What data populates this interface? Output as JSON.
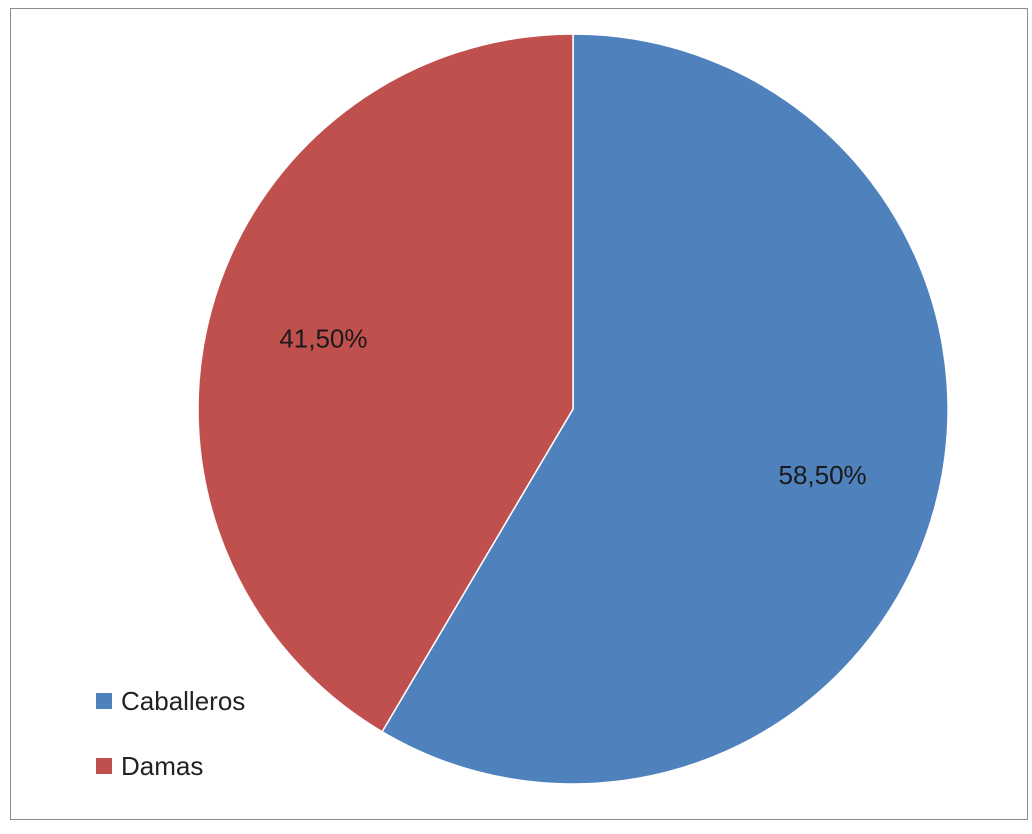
{
  "chart_data": {
    "type": "pie",
    "title": "",
    "legend_position": "bottom-left",
    "series": [
      {
        "name": "Caballeros",
        "value": 58.5,
        "label": "58,50%",
        "color": "#4F81BD"
      },
      {
        "name": "Damas",
        "value": 41.5,
        "label": "41,50%",
        "color": "#C0504D"
      }
    ]
  }
}
